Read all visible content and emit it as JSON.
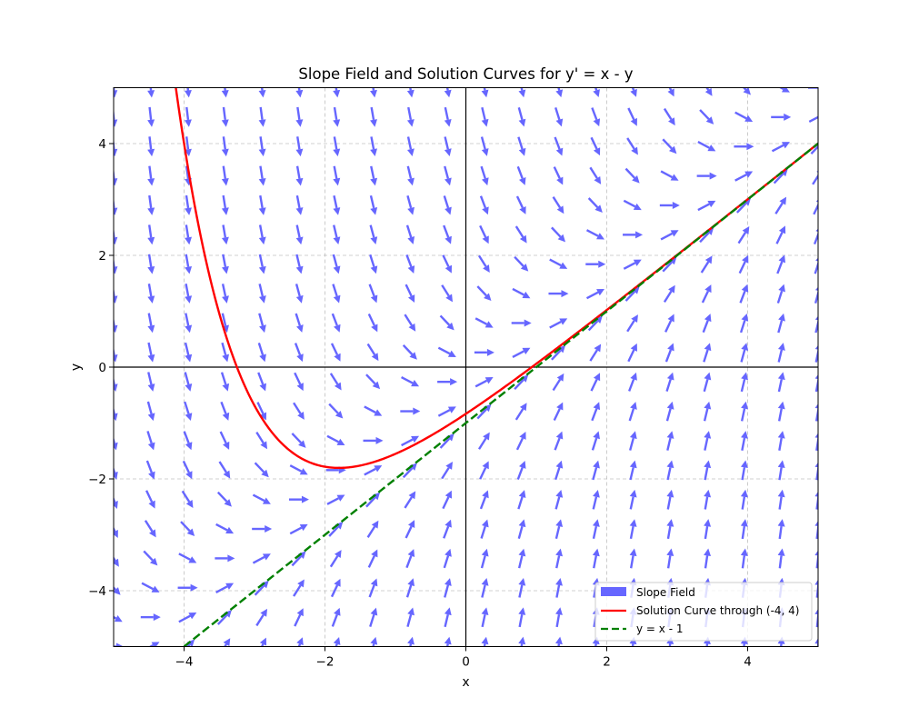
{
  "chart_data": {
    "type": "line",
    "title": "Slope Field and Solution Curves for y' = x - y",
    "xlabel": "x",
    "ylabel": "y",
    "xlim": [
      -5,
      5
    ],
    "ylim": [
      -5,
      5
    ],
    "x_ticks": [
      -4,
      -2,
      0,
      2,
      4
    ],
    "y_ticks": [
      -4,
      -2,
      0,
      2,
      4
    ],
    "x_tick_labels": [
      "−4",
      "−2",
      "0",
      "2",
      "4"
    ],
    "y_tick_labels": [
      "−4",
      "−2",
      "0",
      "2",
      "4"
    ],
    "grid": true,
    "grid_style": "dashed",
    "axis_lines_through_origin": true,
    "legend_position": "lower right",
    "slope_field": {
      "name": "Slope Field",
      "equation": "dy/dx = x - y",
      "grid_x": {
        "start": -5,
        "stop": 5,
        "num": 20
      },
      "grid_y": {
        "start": -5,
        "stop": 5,
        "num": 20
      },
      "normalized": true,
      "color": "#6666ff"
    },
    "series": [
      {
        "name": "Solution Curve through (-4, 4)",
        "formula": "y = x - 1 + 9*exp(-(x+4))",
        "initial_point": [
          -4,
          4
        ],
        "color": "#ff0000",
        "style": "solid",
        "x": [
          -4.12,
          -4,
          -3.5,
          -3.25,
          -3,
          -2.5,
          -2,
          -1.8,
          -1.5,
          -1,
          -0.5,
          0,
          0.5,
          1,
          1.5,
          2,
          3,
          4,
          5
        ],
        "y": [
          5.03,
          4.0,
          1.96,
          0.0,
          -1.0,
          -1.77,
          -1.78,
          -1.8,
          -1.74,
          -1.55,
          -1.22,
          -0.84,
          -0.4,
          0.06,
          0.53,
          1.02,
          2.01,
          3.0,
          4.0
        ]
      },
      {
        "name": "y = x - 1",
        "formula": "y = x - 1",
        "color": "#008000",
        "style": "dashed",
        "x": [
          -4,
          5
        ],
        "y": [
          -5,
          4
        ]
      }
    ]
  },
  "legend": {
    "items": [
      {
        "label": "Slope Field",
        "kind": "patch",
        "color": "#6666ff"
      },
      {
        "label": "Solution Curve through (-4, 4)",
        "kind": "solid",
        "color": "#ff0000"
      },
      {
        "label": "y = x - 1",
        "kind": "dashed",
        "color": "#008000"
      }
    ]
  }
}
